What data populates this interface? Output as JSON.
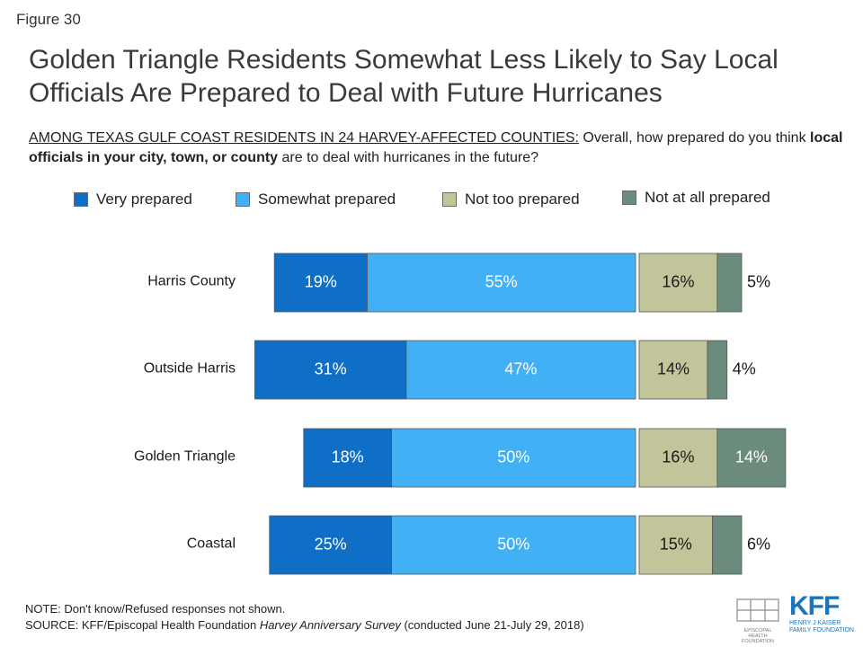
{
  "figure_label": "Figure 30",
  "title": "Golden Triangle Residents Somewhat Less Likely to Say Local Officials Are Prepared to Deal with Future Hurricanes",
  "subtitle": {
    "prefix": "AMONG TEXAS GULF COAST RESIDENTS IN 24 HARVEY-AFFECTED COUNTIES:",
    "part1": " Overall, how prepared do you think ",
    "bold": "local officials in your city, town, or county",
    "part2": " are to deal with hurricanes in the future?"
  },
  "legend": [
    {
      "label": "Very prepared",
      "color": "#0f6fc6"
    },
    {
      "label": "Somewhat prepared",
      "color": "#41b0f5"
    },
    {
      "label": "Not too prepared",
      "color": "#c2c49a"
    },
    {
      "label": "Not at all prepared",
      "color": "#6b8c7d"
    }
  ],
  "chart_data": {
    "type": "bar",
    "orientation": "horizontal",
    "stacking": "diverging",
    "categories": [
      "Harris County",
      "Outside Harris",
      "Golden Triangle",
      "Coastal"
    ],
    "series": [
      {
        "name": "Very prepared",
        "side": "left",
        "values": [
          19,
          31,
          18,
          25
        ],
        "labels": [
          "19%",
          "31%",
          "18%",
          "25%"
        ],
        "color": "#0f6fc6"
      },
      {
        "name": "Somewhat prepared",
        "side": "left",
        "values": [
          55,
          47,
          50,
          50
        ],
        "labels": [
          "55%",
          "47%",
          "50%",
          "50%"
        ],
        "color": "#41b0f5"
      },
      {
        "name": "Not too prepared",
        "side": "right",
        "values": [
          16,
          14,
          16,
          15
        ],
        "labels": [
          "16%",
          "14%",
          "16%",
          "15%"
        ],
        "color": "#c2c49a"
      },
      {
        "name": "Not at all prepared",
        "side": "right",
        "values": [
          5,
          4,
          14,
          6
        ],
        "labels": [
          "5%",
          "4%",
          "14%",
          "6%"
        ],
        "color": "#6b8c7d"
      }
    ]
  },
  "footer": {
    "note": "NOTE: Don't know/Refused responses not shown.",
    "source_prefix": "SOURCE: KFF/Episcopal Health Foundation ",
    "source_italic": "Harvey Anniversary Survey",
    "source_suffix": " (conducted June 21-July 29, 2018)"
  },
  "logos": {
    "ehf_text": "EPISCOPAL HEALTH FOUNDATION",
    "kff_mark": "KFF",
    "kff_text": "HENRY J KAISER FAMILY FOUNDATION"
  }
}
